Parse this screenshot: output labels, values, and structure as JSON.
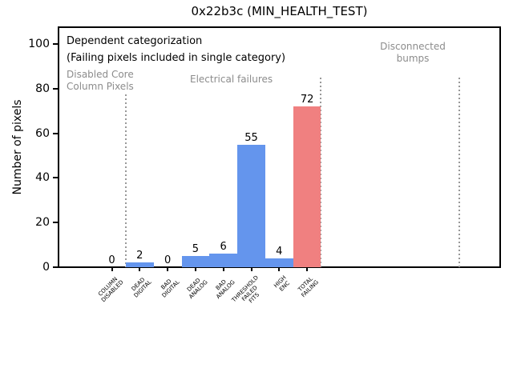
{
  "title": "0x22b3c (MIN_HEALTH_TEST)",
  "axes": {
    "ylabel": "Number of pixels"
  },
  "annotations": {
    "heading": "Dependent categorization",
    "subheading": "(Failing pixels included in single category)",
    "sections": [
      {
        "label": "Disabled Core\nColumn Pixels"
      },
      {
        "label": "Electrical failures"
      },
      {
        "label": "Disconnected\nbumps"
      }
    ]
  },
  "colors": {
    "bar_blue": "#6495ED",
    "bar_red": "#F08080",
    "section_text": "#8c8c8c",
    "divider_gray": "#999999"
  },
  "chart_data": {
    "type": "bar",
    "title": "0x22b3c (MIN_HEALTH_TEST)",
    "xlabel": "",
    "ylabel": "Number of pixels",
    "categories": [
      "COLUMN\nDISABLED",
      "DEAD\nDIGITAL",
      "BAD\nDIGITAL",
      "DEAD\nANALOG",
      "BAD\nANALOG",
      "THRESHOLD\nFAILED\nFITS",
      "HIGH\nENC",
      "TOTAL\nFAILING"
    ],
    "values": [
      0,
      2,
      0,
      5,
      6,
      55,
      4,
      72
    ],
    "value_labels": [
      "0",
      "2",
      "0",
      "5",
      "6",
      "55",
      "4",
      "72"
    ],
    "bar_colors": [
      "blue",
      "blue",
      "blue",
      "blue",
      "blue",
      "blue",
      "blue",
      "red"
    ],
    "ylim": [
      0,
      108
    ],
    "yticks": [
      0,
      20,
      40,
      60,
      80,
      100
    ],
    "grid": false,
    "legend": false,
    "sections": [
      {
        "label": "Disabled Core Column Pixels",
        "categories": [
          "COLUMN DISABLED"
        ]
      },
      {
        "label": "Electrical failures",
        "categories": [
          "DEAD DIGITAL",
          "BAD DIGITAL",
          "DEAD ANALOG",
          "BAD ANALOG",
          "THRESHOLD FAILED FITS",
          "HIGH ENC",
          "TOTAL FAILING"
        ]
      },
      {
        "label": "Disconnected bumps",
        "categories": []
      }
    ],
    "annotations": [
      "Dependent categorization",
      "(Failing pixels included in single category)"
    ],
    "style_notes": "dotted gray vertical section dividers; x tick labels rotated 45 degrees"
  }
}
